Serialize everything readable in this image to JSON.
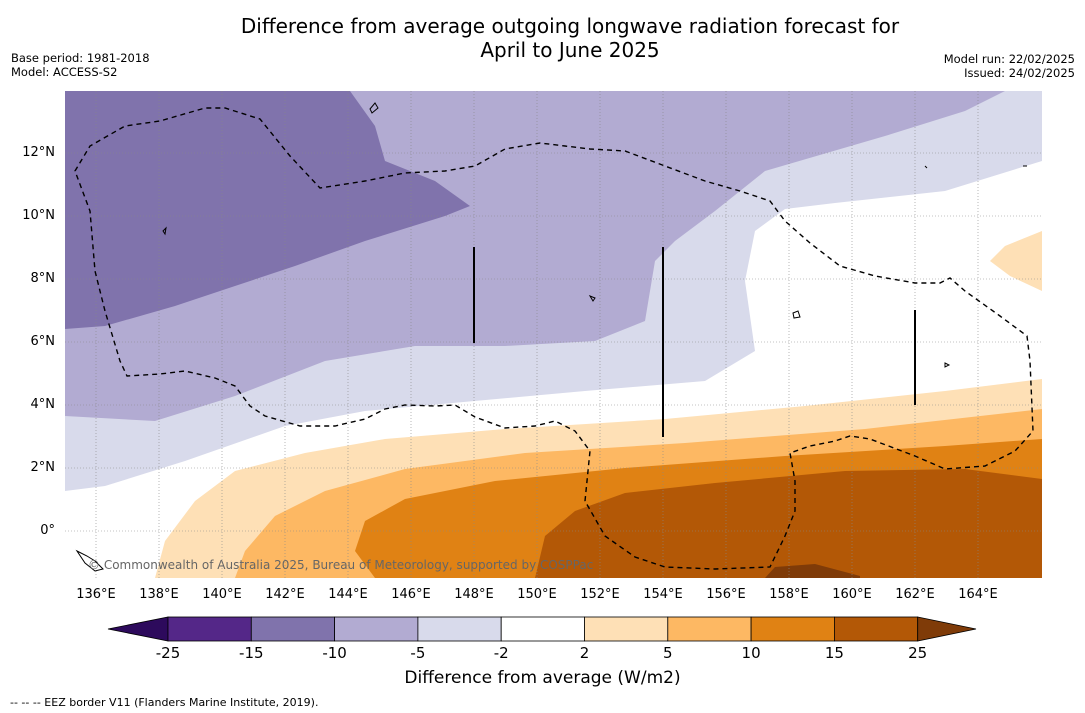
{
  "title_line1": "Difference from average outgoing longwave radiation forecast for",
  "title_line2": "April to June 2025",
  "meta_left": {
    "base_period": "Base period: 1981-2018",
    "model": "Model: ACCESS-S2"
  },
  "meta_right": {
    "model_run": "Model run: 22/02/2025",
    "issued": "Issued: 24/02/2025"
  },
  "lat_ticks": [
    "12°N",
    "10°N",
    "8°N",
    "6°N",
    "4°N",
    "2°N",
    "0°"
  ],
  "lon_ticks": [
    "136°E",
    "138°E",
    "140°E",
    "142°E",
    "144°E",
    "146°E",
    "148°E",
    "150°E",
    "152°E",
    "154°E",
    "156°E",
    "158°E",
    "160°E",
    "162°E",
    "164°E"
  ],
  "copyright": "© Commonwealth of Australia 2025, Bureau of Meteorology, supported by COSPPac",
  "colorbar": {
    "ticks": [
      "-25",
      "-15",
      "-10",
      "-5",
      "-2",
      "2",
      "5",
      "10",
      "15",
      "25"
    ],
    "colors": [
      "#2d0a5c",
      "#542788",
      "#8073ac",
      "#b2abd2",
      "#d8daeb",
      "#ffffff",
      "#fee0b6",
      "#fdb863",
      "#e08214",
      "#b35806",
      "#7f3b08"
    ],
    "label": "Difference from average (W/m2)"
  },
  "footnote": "-- -- -- EEZ border V11 (Flanders Marine Institute, 2019)."
}
